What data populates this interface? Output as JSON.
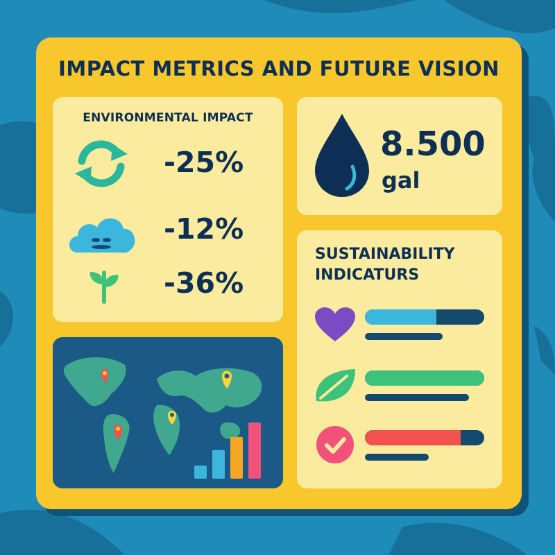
{
  "title": "IMPACT METRICS AND FUTURE VISION",
  "environmental": {
    "label": "ENVIRONMENTAL IMPACT",
    "metrics": [
      {
        "icon": "recycle-icon",
        "value": "-25%"
      },
      {
        "icon": "cloud-icon",
        "value": "-12%"
      },
      {
        "icon": "sprout-icon",
        "value": "-36%"
      }
    ]
  },
  "water": {
    "icon": "water-drop-icon",
    "value": "8.500",
    "unit": "gal"
  },
  "sustainability": {
    "title_line1": "SUSTAINABILITY",
    "title_line2": "INDICATURS",
    "indicators": [
      {
        "icon": "heart-icon",
        "color": "#3bb7dd",
        "level": 0.6
      },
      {
        "icon": "leaf-icon",
        "color": "#3dc27a",
        "level": 1.0
      },
      {
        "icon": "check-circle-icon",
        "color": "#f2514e",
        "level": 0.8
      }
    ]
  },
  "map_panel": {
    "icons": [
      "location-pin-icon",
      "world-map",
      "bar-chart-icon"
    ],
    "bar_levels": [
      0.22,
      0.48,
      0.7,
      0.94
    ],
    "bar_colors": [
      "#3bb7dd",
      "#3bb7dd",
      "#f5a623",
      "#f0527c"
    ]
  },
  "colors": {
    "card": "#f8c72c",
    "panel": "#fbeb9f",
    "text": "#0e2f55",
    "background": "#1e8bb8"
  }
}
